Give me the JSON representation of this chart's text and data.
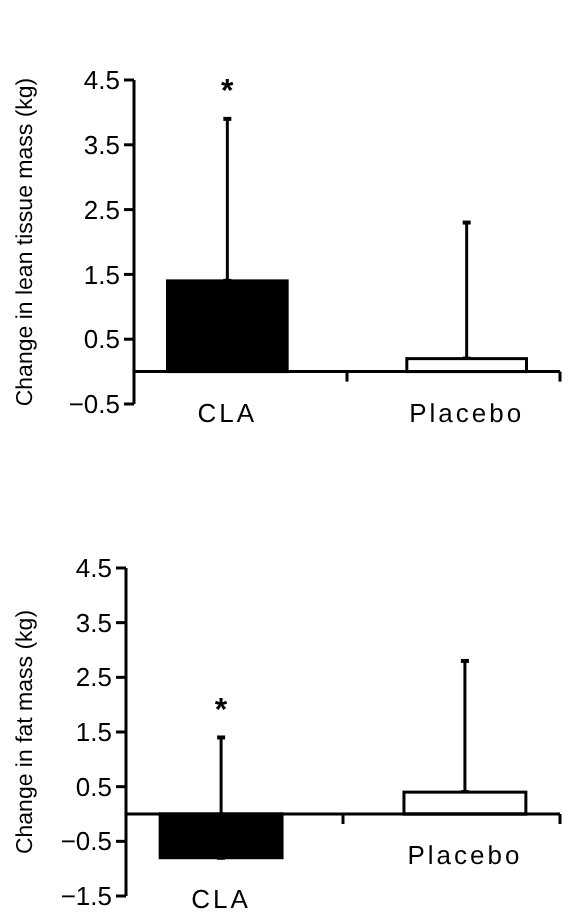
{
  "chart_data": [
    {
      "type": "bar",
      "ylabel": "Change in lean tissue mass (kg)",
      "categories": [
        "CLA",
        "Placebo"
      ],
      "values": [
        1.4,
        0.2
      ],
      "colors": [
        "#000000",
        "#ffffff"
      ],
      "errors": [
        [
          1.4,
          3.9
        ],
        [
          0.2,
          2.3
        ]
      ],
      "ylim": [
        -0.5,
        4.5
      ],
      "yticks": [
        -0.5,
        0.5,
        1.5,
        2.5,
        3.5,
        4.5
      ],
      "annotations": [
        "*"
      ]
    },
    {
      "type": "bar",
      "ylabel": "Change in fat mass (kg)",
      "categories": [
        "CLA",
        "Placebo"
      ],
      "values": [
        -0.8,
        0.4
      ],
      "colors": [
        "#000000",
        "#ffffff"
      ],
      "errors": [
        [
          -0.8,
          1.4
        ],
        [
          0.4,
          2.8
        ]
      ],
      "ylim": [
        -1.5,
        4.5
      ],
      "yticks": [
        -1.5,
        -0.5,
        0.5,
        1.5,
        2.5,
        3.5,
        4.5
      ],
      "annotations": [
        "*"
      ]
    }
  ]
}
